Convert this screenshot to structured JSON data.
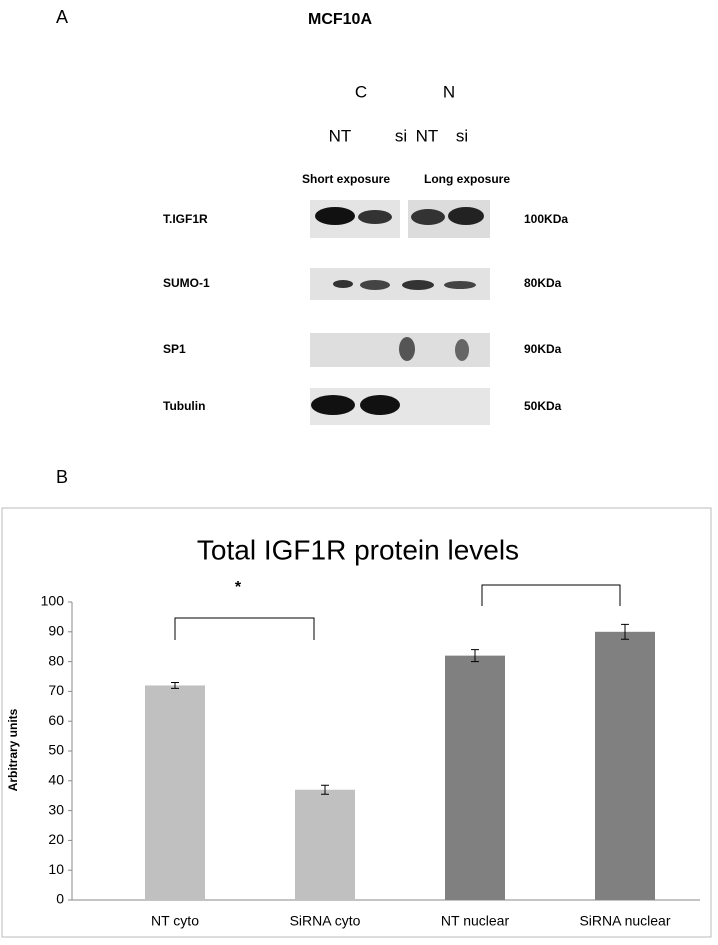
{
  "panel_labels": [
    "A",
    "B"
  ],
  "blot": {
    "title": "MCF10A",
    "groups": [
      "C",
      "N"
    ],
    "lanes": [
      "NT",
      "si",
      "NT",
      "si"
    ],
    "exposures": [
      "Short exposure",
      "Long exposure"
    ],
    "rows": [
      {
        "label": "T.IGF1R",
        "size": "100KDa"
      },
      {
        "label": "SUMO-1",
        "size": "80KDa"
      },
      {
        "label": "SP1",
        "size": "90KDa"
      },
      {
        "label": "Tubulin",
        "size": "50KDa"
      }
    ]
  },
  "chart_data": {
    "type": "bar",
    "title": "Total IGF1R protein levels",
    "y_label": "Arbitrary units",
    "categories": [
      "NT cyto",
      "SiRNA cyto",
      "NT nuclear",
      "SiRNA nuclear"
    ],
    "values": [
      72,
      37,
      82,
      90
    ],
    "errors": [
      1,
      1.5,
      2,
      2.5
    ],
    "colors": [
      "#c0c0c0",
      "#c0c0c0",
      "#808080",
      "#808080"
    ],
    "ylim": [
      0,
      100
    ],
    "yticks": [
      0,
      10,
      20,
      30,
      40,
      50,
      60,
      70,
      80,
      90,
      100
    ],
    "annotations": [
      "*"
    ]
  }
}
